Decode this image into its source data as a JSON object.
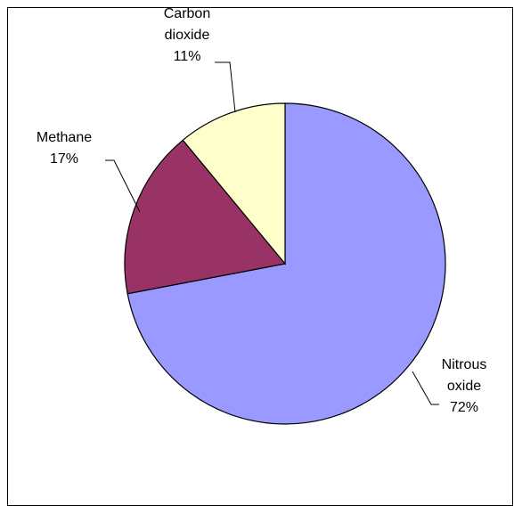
{
  "chart_data": {
    "type": "pie",
    "title": "",
    "slices": [
      {
        "label": "Nitrous oxide",
        "label_lines": [
          "Nitrous",
          "oxide"
        ],
        "value": 72,
        "value_label": "72%",
        "color": "#9999FF"
      },
      {
        "label": "Methane",
        "label_lines": [
          "Methane"
        ],
        "value": 17,
        "value_label": "17%",
        "color": "#993366"
      },
      {
        "label": "Carbon dioxide",
        "label_lines": [
          "Carbon",
          "dioxide"
        ],
        "value": 11,
        "value_label": "11%",
        "color": "#FFFFCC"
      }
    ],
    "start_angle": "12 o'clock",
    "direction": "clockwise",
    "legend": "none",
    "outline_color": "#000000"
  }
}
